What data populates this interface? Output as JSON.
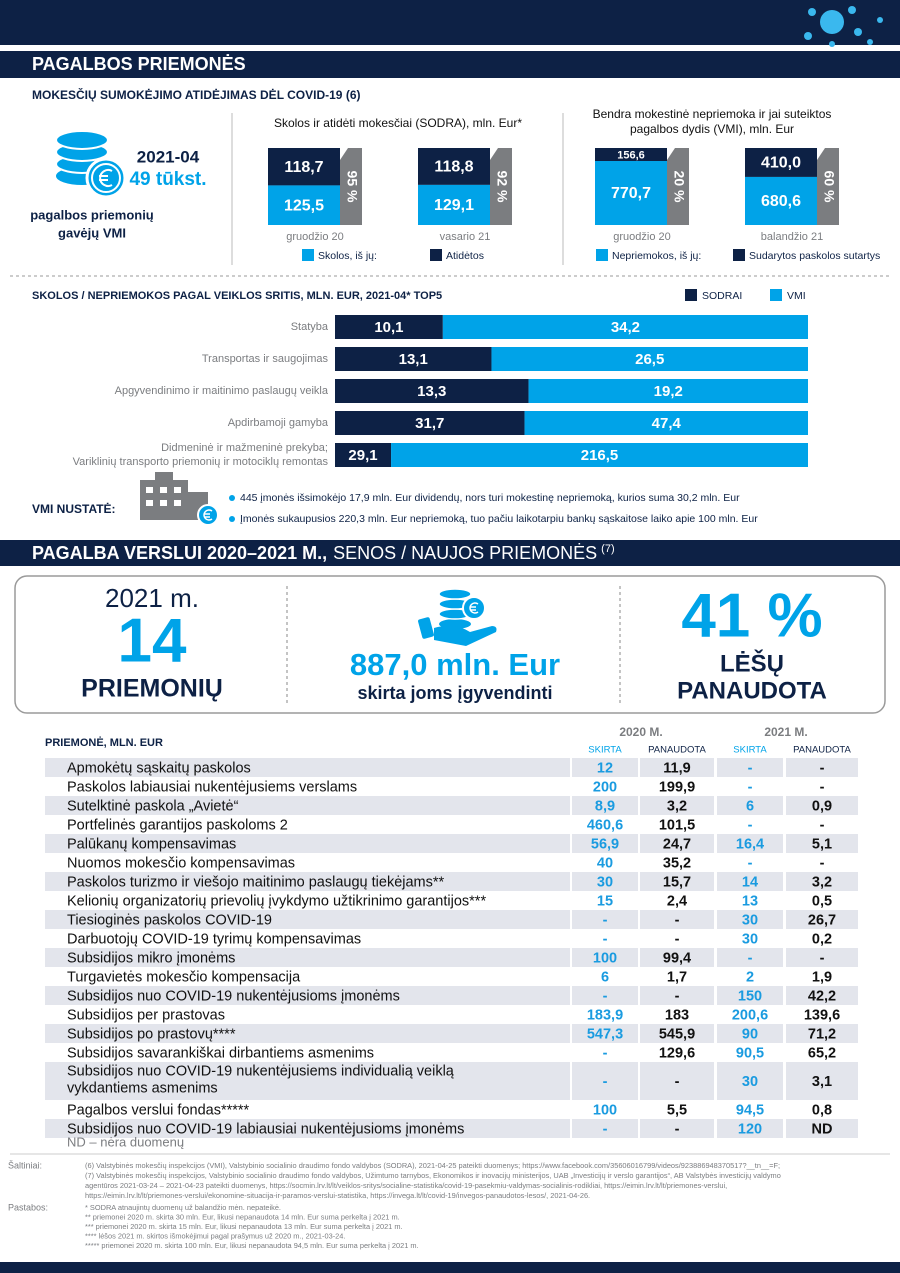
{
  "header": {
    "title": "PAGALBOS PRIEMONĖS",
    "subtitle": "MOKESČIŲ SUMOKĖJIMO ATIDĖJIMAS DĖL COVID-19 (6)"
  },
  "recipients": {
    "date": "2021-04",
    "count": "49 tūkst.",
    "label_lines": [
      "pagalbos priemonių",
      "gavėjų VMI"
    ]
  },
  "sodra_chart": {
    "title": "Skolos ir atidėti mokesčiai (SODRA), mln. Eur*",
    "categories": [
      "gruodžio 20",
      "vasario 21"
    ],
    "series": [
      {
        "name": "Skolos, iš jų:",
        "color": "#00a3e8",
        "values": [
          125.5,
          129.1
        ],
        "value_labels": [
          "125,5",
          "129,1"
        ]
      },
      {
        "name": "Atidėtos",
        "color": "#0d2145",
        "values": [
          118.7,
          118.8
        ],
        "value_labels": [
          "118,7",
          "118,8"
        ]
      }
    ],
    "shares": [
      "95 %",
      "92 %"
    ]
  },
  "vmi_chart": {
    "title_lines": [
      "Bendra mokestinė nepriemoka ir jai suteiktos",
      "pagalbos dydis (VMI), mln. Eur"
    ],
    "categories": [
      "gruodžio 20",
      "balandžio 21"
    ],
    "series": [
      {
        "name": "Nepriemokos, iš jų:",
        "color": "#00a3e8",
        "values": [
          770.7,
          680.6
        ],
        "value_labels": [
          "770,7",
          "680,6"
        ]
      },
      {
        "name": "Sudarytos paskolos sutartys",
        "color": "#0d2145",
        "values": [
          156.6,
          410.0
        ],
        "value_labels": [
          "156,6",
          "410,0"
        ]
      }
    ],
    "shares": [
      "20 %",
      "60 %"
    ]
  },
  "top5_chart": {
    "title": "SKOLOS / NEPRIEMOKOS PAGAL VEIKLOS SRITIS, MLN. EUR, 2021-04* TOP5",
    "categories": [
      "Statyba",
      "Transportas ir saugojimas",
      "Apgyvendinimo ir maitinimo paslaugų veikla",
      "Apdirbamoji gamyba",
      [
        "Didmeninė ir mažmeninė prekyba;",
        "Variklinių transporto priemonių ir motociklų remontas"
      ]
    ],
    "series": [
      {
        "name": "SODRAI",
        "color": "#0d2145",
        "values": [
          10.1,
          13.1,
          13.3,
          31.7,
          29.1
        ],
        "value_labels": [
          "10,1",
          "13,1",
          "13,3",
          "31,7",
          "29,1"
        ]
      },
      {
        "name": "VMI",
        "color": "#00a3e8",
        "values": [
          34.2,
          26.5,
          19.2,
          47.4,
          216.5
        ],
        "value_labels": [
          "34,2",
          "26,5",
          "19,2",
          "47,4",
          "216,5"
        ]
      }
    ]
  },
  "vmi_findings": {
    "label": "VMI NUSTATĖ:",
    "items": [
      "445 įmonės išsimokėjo 17,9 mln. Eur dividendų, nors turi mokestinę nepriemoką, kurios suma 30,2 mln. Eur",
      "Įmonės sukaupusios 220,3 mln. Eur nepriemoką, tuo pačiu laikotarpiu bankų sąskaitose laiko apie 100 mln. Eur"
    ]
  },
  "section2": {
    "title_bold": "PAGALBA VERSLUI 2020–2021 M.,",
    "title_rest": "SENOS / NAUJOS PRIEMONĖS",
    "title_note": "(7)"
  },
  "summary": {
    "year": "2021 m.",
    "count": "14",
    "count_label": "PRIEMONIŲ",
    "amount": "887,0 mln. Eur",
    "amount_label": "skirta joms įgyvendinti",
    "share": "41 %",
    "share_lines": [
      "LĖŠŲ",
      "PANAUDOTA"
    ]
  },
  "table": {
    "header": "PRIEMONĖ, MLN. EUR",
    "years": [
      {
        "label": "2020 M.",
        "columns": [
          "SKIRTA",
          "PANAUDOTA"
        ]
      },
      {
        "label": "2021 M.",
        "columns": [
          "SKIRTA",
          "PANAUDOTA"
        ]
      }
    ],
    "rows": [
      [
        "Apmokėtų sąskaitų paskolos",
        "12",
        "11,9",
        "-",
        "-"
      ],
      [
        "Paskolos labiausiai nukentėjusiems verslams",
        "200",
        "199,9",
        "-",
        "-"
      ],
      [
        "Sutelktinė paskola „Avietė“",
        "8,9",
        "3,2",
        "6",
        "0,9"
      ],
      [
        "Portfelinės garantijos paskoloms 2",
        "460,6",
        "101,5",
        "-",
        "-"
      ],
      [
        "Palūkanų kompensavimas",
        "56,9",
        "24,7",
        "16,4",
        "5,1"
      ],
      [
        "Nuomos mokesčio kompensavimas",
        "40",
        "35,2",
        "-",
        "-"
      ],
      [
        "Paskolos turizmo ir viešojo maitinimo paslaugų tiekėjams**",
        "30",
        "15,7",
        "14",
        "3,2"
      ],
      [
        "Kelionių organizatorių prievolių įvykdymo užtikrinimo garantijos***",
        "15",
        "2,4",
        "13",
        "0,5"
      ],
      [
        "Tiesioginės paskolos COVID-19",
        "-",
        "-",
        "30",
        "26,7"
      ],
      [
        "Darbuotojų COVID-19 tyrimų kompensavimas",
        "-",
        "-",
        "30",
        "0,2"
      ],
      [
        "Subsidijos mikro įmonėms",
        "100",
        "99,4",
        "-",
        "-"
      ],
      [
        "Turgavietės mokesčio kompensacija",
        "6",
        "1,7",
        "2",
        "1,9"
      ],
      [
        "Subsidijos nuo COVID-19 nukentėjusioms įmonėms",
        "-",
        "-",
        "150",
        "42,2"
      ],
      [
        "Subsidijos per prastovas",
        "183,9",
        "183",
        "200,6",
        "139,6"
      ],
      [
        "Subsidijos po prastovų****",
        "547,3",
        "545,9",
        "90",
        "71,2"
      ],
      [
        "Subsidijos savarankiškai dirbantiems asmenims",
        "-",
        "129,6",
        "90,5",
        "65,2"
      ],
      [
        [
          "Subsidijos nuo COVID-19 nukentėjusiems individualią veiklą",
          "vykdantiems asmenims"
        ],
        "-",
        "-",
        "30",
        "3,1"
      ],
      [
        "Pagalbos verslui fondas*****",
        "100",
        "5,5",
        "94,5",
        "0,8"
      ],
      [
        "Subsidijos nuo COVID-19 labiausiai nukentėjusioms įmonėms",
        "-",
        "-",
        "120",
        "ND"
      ]
    ],
    "note": "ND – nėra duomenų"
  },
  "footer": {
    "sources_label": "Šaltiniai:",
    "sources": [
      "(6) Valstybinės mokesčių inspekcijos (VMI), Valstybinio socialinio draudimo fondo valdybos (SODRA), 2021-04-25 pateikti duomenys; https://www.facebook.com/35606016799/videos/923886948370517?__tn__=F;",
      "(7) Valstybinės mokesčių inspekcijos, Valstybinio socialinio draudimo fondo valdybos, Užimtumo tarnybos, Ekonomikos ir inovacijų ministerijos, UAB „Investicijų ir verslo garantijos“, AB Valstybės investicijų valdymo",
      "agentūros 2021-03-24 – 2021-04-23 pateikti duomenys, https://socmin.lrv.lt/lt/veiklos-sritys/socialine-statistika/covid-19-pasekmiu-valdymas-socialinis-rodikliai, https://eimin.lrv.lt/lt/priemones-verslui,",
      "https://eimin.lrv.lt/lt/priemones-verslui/ekonomine-situacija-ir-paramos-verslui-statistika, https://invega.lt/lt/covid-19/invegos-panaudotos-lesos/, 2021-04-26."
    ],
    "notes_label": "Pastabos:",
    "notes": [
      "* SODRA atnaujintų duomenų už balandžio mėn. nepateikė.",
      "** priemonei 2020 m. skirta 30 mln. Eur, likusi nepanaudota 14 mln. Eur suma perkelta į 2021 m.",
      "*** priemonei 2020 m. skirta 15 mln. Eur, likusi nepanaudota 13 mln. Eur suma perkelta į 2021 m.",
      "**** lėšos 2021 m. skirtos išmokėjimui pagal prašymus už 2020 m., 2021-03-24.",
      "***** priemonei 2020 m. skirta 100 mln. Eur, likusi nepanaudota 94,5 mln. Eur suma perkelta į 2021 m."
    ]
  }
}
